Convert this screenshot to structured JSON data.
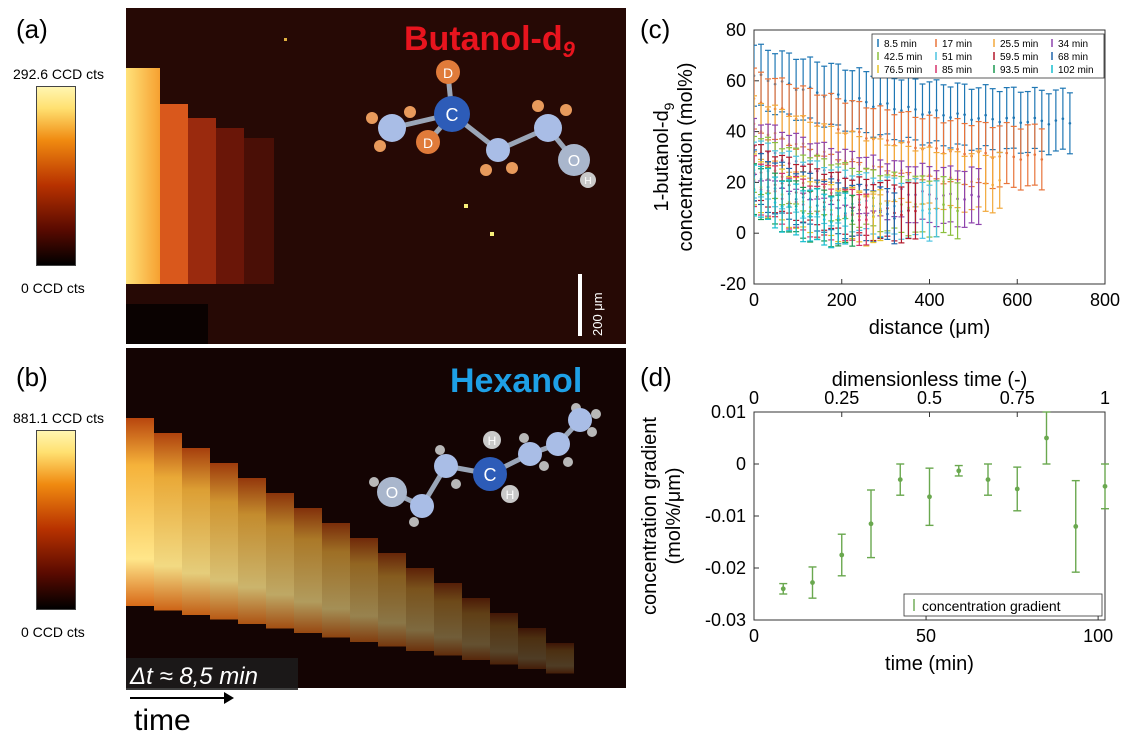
{
  "panels": {
    "a": {
      "label": "(a)",
      "title": "Butanol-d",
      "title_sub": "9",
      "cbar_max": "292.6 CCD cts",
      "cbar_min": "0 CCD cts",
      "scalebar": "200 μm",
      "atoms": {
        "c": "C",
        "d1": "D",
        "d2": "D",
        "o": "O",
        "h": "H"
      }
    },
    "b": {
      "label": "(b)",
      "title": "Hexanol",
      "cbar_max": "881.1 CCD cts",
      "cbar_min": "0 CCD cts",
      "delta_t": "Δt ≈ 8,5 min",
      "time_label": "time",
      "atoms": {
        "c": "C",
        "h1": "H",
        "h2": "H",
        "o": "O"
      }
    },
    "c": {
      "label": "(c)"
    },
    "d": {
      "label": "(d)"
    }
  },
  "colors": {
    "butanol_title": "#e8141e",
    "hexanol_title": "#1ea0e6",
    "gradient_series": "#6aa84f",
    "atom_c": "#2d5cb8",
    "atom_d": "#e07b3a"
  },
  "chart_data": [
    {
      "type": "line",
      "panel": "c",
      "xlabel": "distance (μm)",
      "ylabel": "1-butanol-d",
      "ylabel_sub": "9",
      "ylabel2": "concentration (mol%)",
      "xlim": [
        0,
        800
      ],
      "ylim": [
        -20,
        80
      ],
      "xticks": [
        0,
        200,
        400,
        600,
        800
      ],
      "yticks": [
        -20,
        0,
        20,
        40,
        60,
        80
      ],
      "legend_position": "top-right",
      "error_bars": true,
      "series": [
        {
          "name": "8.5 min",
          "color": "#1f77b4",
          "x_end": 720,
          "start": 62,
          "min": 44,
          "end": 44,
          "err": 12
        },
        {
          "name": "17 min",
          "color": "#e8743b",
          "x_end": 660,
          "start": 52,
          "min": 30,
          "end": 30,
          "err": 12
        },
        {
          "name": "25.5 min",
          "color": "#f2a93b",
          "x_end": 560,
          "start": 42,
          "min": 20,
          "end": 20,
          "err": 11
        },
        {
          "name": "34 min",
          "color": "#8e44ad",
          "x_end": 520,
          "start": 34,
          "min": 14,
          "end": 14,
          "err": 11
        },
        {
          "name": "42.5 min",
          "color": "#8bbf3d",
          "x_end": 470,
          "start": 28,
          "min": 10,
          "end": 12,
          "err": 11
        },
        {
          "name": "51 min",
          "color": "#4cc3e0",
          "x_end": 420,
          "start": 26,
          "min": 9,
          "end": 11,
          "err": 11
        },
        {
          "name": "59.5 min",
          "color": "#b2182b",
          "x_end": 380,
          "start": 24,
          "min": 8,
          "end": 10,
          "err": 11
        },
        {
          "name": "68 min",
          "color": "#2166ac",
          "x_end": 330,
          "start": 22,
          "min": 7,
          "end": 9,
          "err": 10
        },
        {
          "name": "76.5 min",
          "color": "#e6c229",
          "x_end": 290,
          "start": 20,
          "min": 6,
          "end": 8,
          "err": 10
        },
        {
          "name": "85 min",
          "color": "#d6336c",
          "x_end": 260,
          "start": 20,
          "min": 6,
          "end": 8,
          "err": 10
        },
        {
          "name": "93.5 min",
          "color": "#1a9850",
          "x_end": 230,
          "start": 18,
          "min": 5,
          "end": 7,
          "err": 10
        },
        {
          "name": "102 min",
          "color": "#17becf",
          "x_end": 210,
          "start": 18,
          "min": 5,
          "end": 7,
          "err": 10
        }
      ]
    },
    {
      "type": "scatter",
      "panel": "d",
      "xlabel": "time (min)",
      "xlabel_top": "dimensionless time (-)",
      "ylabel": "concentration gradient",
      "ylabel2": "(mol%/μm)",
      "xlim": [
        0,
        102
      ],
      "ylim": [
        -0.03,
        0.01
      ],
      "xticks": [
        0,
        50,
        100
      ],
      "xticks_top": [
        "0",
        "0.25",
        "0.5",
        "0.75",
        "1"
      ],
      "yticks": [
        -0.03,
        -0.02,
        -0.01,
        0,
        0.01
      ],
      "legend_position": "bottom-right",
      "error_bars": true,
      "series": [
        {
          "name": "concentration gradient",
          "x": [
            8.5,
            17,
            25.5,
            34,
            42.5,
            51,
            59.5,
            68,
            76.5,
            85,
            93.5,
            102
          ],
          "y": [
            -0.024,
            -0.0228,
            -0.0175,
            -0.0115,
            -0.003,
            -0.0063,
            -0.0013,
            -0.003,
            -0.0048,
            0.005,
            -0.012,
            -0.0043
          ],
          "err": [
            0.001,
            0.003,
            0.004,
            0.0065,
            0.003,
            0.0055,
            0.001,
            0.003,
            0.0042,
            0.005,
            0.0088,
            0.0043
          ]
        }
      ]
    }
  ]
}
